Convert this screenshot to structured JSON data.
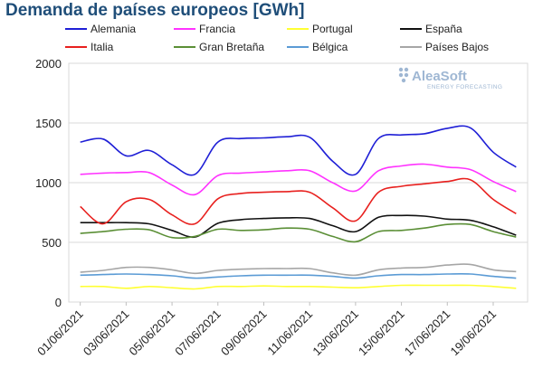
{
  "chart_data": {
    "type": "line",
    "title": "Demanda de países europeos [GWh]",
    "xlabel": "",
    "ylabel": "",
    "ylim": [
      0,
      2000
    ],
    "yticks": [
      0,
      500,
      1000,
      1500,
      2000
    ],
    "x": [
      "01/06/2021",
      "02/06/2021",
      "03/06/2021",
      "04/06/2021",
      "05/06/2021",
      "06/06/2021",
      "07/06/2021",
      "08/06/2021",
      "09/06/2021",
      "10/06/2021",
      "11/06/2021",
      "12/06/2021",
      "13/06/2021",
      "14/06/2021",
      "15/06/2021",
      "16/06/2021",
      "17/06/2021",
      "18/06/2021",
      "19/06/2021",
      "20/06/2021"
    ],
    "xtick_labels": [
      "01/06/2021",
      "03/06/2021",
      "05/06/2021",
      "07/06/2021",
      "09/06/2021",
      "11/06/2021",
      "13/06/2021",
      "15/06/2021",
      "17/06/2021",
      "19/06/2021"
    ],
    "grid": true,
    "legend_position": "top",
    "series": [
      {
        "name": "Alemania",
        "color": "#1f1fd6",
        "values": [
          1340,
          1365,
          1225,
          1270,
          1150,
          1070,
          1340,
          1370,
          1375,
          1385,
          1380,
          1180,
          1070,
          1370,
          1400,
          1410,
          1455,
          1460,
          1255,
          1130
        ]
      },
      {
        "name": "Francia",
        "color": "#ff33ff",
        "values": [
          1070,
          1080,
          1085,
          1085,
          980,
          900,
          1060,
          1080,
          1090,
          1100,
          1100,
          1000,
          930,
          1100,
          1140,
          1155,
          1130,
          1110,
          1010,
          925
        ]
      },
      {
        "name": "Portugal",
        "color": "#ffff33",
        "values": [
          130,
          130,
          115,
          130,
          120,
          110,
          130,
          130,
          135,
          130,
          130,
          125,
          120,
          130,
          140,
          140,
          140,
          140,
          130,
          115
        ]
      },
      {
        "name": "España",
        "color": "#111111",
        "values": [
          665,
          665,
          665,
          655,
          600,
          545,
          660,
          690,
          700,
          705,
          700,
          640,
          590,
          710,
          725,
          720,
          695,
          685,
          630,
          560
        ]
      },
      {
        "name": "Italia",
        "color": "#e8201e",
        "values": [
          800,
          655,
          840,
          860,
          730,
          655,
          865,
          910,
          920,
          925,
          920,
          790,
          680,
          920,
          970,
          990,
          1010,
          1025,
          860,
          740
        ]
      },
      {
        "name": "Gran Bretaña",
        "color": "#5b8f36",
        "values": [
          575,
          590,
          610,
          605,
          540,
          550,
          610,
          600,
          605,
          620,
          610,
          550,
          505,
          590,
          600,
          620,
          650,
          650,
          590,
          545
        ]
      },
      {
        "name": "Bélgica",
        "color": "#5b9bd5",
        "values": [
          225,
          230,
          235,
          230,
          220,
          200,
          210,
          220,
          225,
          225,
          225,
          215,
          200,
          220,
          230,
          230,
          235,
          235,
          215,
          200
        ]
      },
      {
        "name": "Países Bajos",
        "color": "#a6a6a6",
        "values": [
          250,
          265,
          290,
          290,
          270,
          240,
          265,
          275,
          280,
          280,
          280,
          245,
          225,
          270,
          285,
          290,
          310,
          315,
          270,
          255
        ]
      }
    ],
    "watermark": {
      "brand": "AleaSoft",
      "tagline": "ENERGY FORECASTING"
    }
  }
}
